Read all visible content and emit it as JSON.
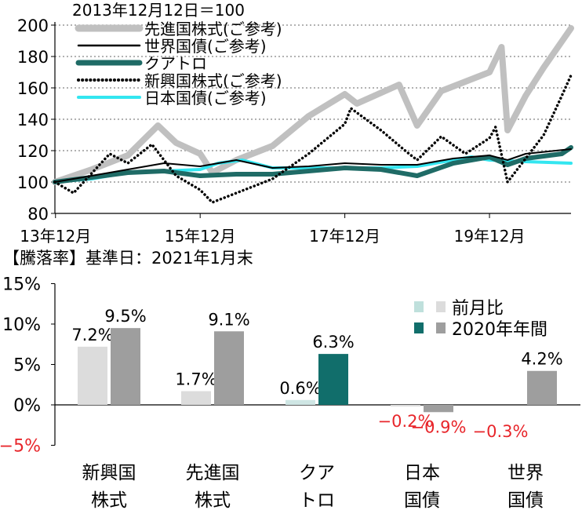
{
  "colors": {
    "developed_equity": "#c0c0c0",
    "world_bond": "#000000",
    "quatro": "#1f6b66",
    "emerging_equity": "#000000",
    "japan_bond": "#33e6f0",
    "prev_month_bar": "#dcdcdc",
    "ytd_bar": "#9e9e9e",
    "quatro_ytd_bar": "#116e6b",
    "quatro_prev_bar": "#cfe6e4",
    "legend_prev_swatch": "#bfe0dc",
    "negative_label": "#e8262b",
    "grid": "#999999"
  },
  "chart_data": [
    {
      "type": "line",
      "subtitle": "2013年12月12日＝100",
      "ylim": [
        80,
        200
      ],
      "yticks": [
        "80",
        "100",
        "120",
        "140",
        "160",
        "180",
        "200"
      ],
      "xlim": [
        "2013-12-12",
        "2021-01-31"
      ],
      "xticks": [
        {
          "date": "2013-12",
          "label": "13年12月"
        },
        {
          "date": "2015-12",
          "label": "15年12月"
        },
        {
          "date": "2017-12",
          "label": "17年12月"
        },
        {
          "date": "2019-12",
          "label": "19年12月"
        }
      ],
      "series": [
        {
          "name": "先進国株式(ご参考)",
          "style": "thick",
          "color_key": "developed_equity",
          "points": [
            [
              "2013-12-12",
              100
            ],
            [
              "2014-06",
              108
            ],
            [
              "2014-12",
              117
            ],
            [
              "2015-05",
              136
            ],
            [
              "2015-08",
              125
            ],
            [
              "2015-12",
              118
            ],
            [
              "2016-02",
              106
            ],
            [
              "2016-06",
              114
            ],
            [
              "2016-12",
              123
            ],
            [
              "2017-06",
              142
            ],
            [
              "2017-12",
              156
            ],
            [
              "2018-02",
              150
            ],
            [
              "2018-09",
              162
            ],
            [
              "2018-12",
              136
            ],
            [
              "2019-04",
              158
            ],
            [
              "2019-12",
              170
            ],
            [
              "2020-02",
              186
            ],
            [
              "2020-03",
              133
            ],
            [
              "2020-06",
              155
            ],
            [
              "2020-09",
              173
            ],
            [
              "2021-01-31",
              198
            ]
          ]
        },
        {
          "name": "世界国債(ご参考)",
          "style": "thin",
          "color_key": "world_bond",
          "points": [
            [
              "2013-12-12",
              100
            ],
            [
              "2014-06",
              104
            ],
            [
              "2014-12",
              108
            ],
            [
              "2015-06",
              112
            ],
            [
              "2015-12",
              110
            ],
            [
              "2016-06",
              114
            ],
            [
              "2016-12",
              109
            ],
            [
              "2017-06",
              110
            ],
            [
              "2017-12",
              112
            ],
            [
              "2018-06",
              111
            ],
            [
              "2018-12",
              111
            ],
            [
              "2019-06",
              115
            ],
            [
              "2019-12",
              117
            ],
            [
              "2020-03",
              114
            ],
            [
              "2020-06",
              118
            ],
            [
              "2021-01-31",
              121
            ]
          ]
        },
        {
          "name": "クアトロ",
          "style": "medium",
          "color_key": "quatro",
          "points": [
            [
              "2013-12-12",
              100
            ],
            [
              "2014-06",
              103
            ],
            [
              "2014-12",
              106
            ],
            [
              "2015-06",
              107
            ],
            [
              "2015-12",
              104
            ],
            [
              "2016-06",
              105
            ],
            [
              "2016-12",
              105
            ],
            [
              "2017-06",
              107
            ],
            [
              "2017-12",
              109
            ],
            [
              "2018-06",
              108
            ],
            [
              "2018-12",
              104
            ],
            [
              "2019-06",
              112
            ],
            [
              "2019-12",
              116
            ],
            [
              "2020-03",
              111
            ],
            [
              "2020-06",
              115
            ],
            [
              "2020-12",
              118
            ],
            [
              "2021-01-31",
              122
            ]
          ]
        },
        {
          "name": "新興国株式(ご参考)",
          "style": "dotted",
          "color_key": "emerging_equity",
          "points": [
            [
              "2013-12-12",
              100
            ],
            [
              "2014-03",
              93
            ],
            [
              "2014-09",
              118
            ],
            [
              "2014-12",
              112
            ],
            [
              "2015-04",
              124
            ],
            [
              "2015-08",
              104
            ],
            [
              "2015-12",
              95
            ],
            [
              "2016-02",
              87
            ],
            [
              "2016-06",
              93
            ],
            [
              "2016-12",
              102
            ],
            [
              "2017-06",
              118
            ],
            [
              "2017-12",
              137
            ],
            [
              "2018-01",
              147
            ],
            [
              "2018-06",
              133
            ],
            [
              "2018-10",
              120
            ],
            [
              "2018-12",
              114
            ],
            [
              "2019-04",
              129
            ],
            [
              "2019-08",
              118
            ],
            [
              "2019-12",
              128
            ],
            [
              "2020-01",
              135
            ],
            [
              "2020-03",
              100
            ],
            [
              "2020-06",
              115
            ],
            [
              "2020-09",
              130
            ],
            [
              "2020-12",
              155
            ],
            [
              "2021-01-31",
              168
            ]
          ]
        },
        {
          "name": "日本国債(ご参考)",
          "style": "medium",
          "color_key": "japan_bond",
          "points": [
            [
              "2013-12-12",
              100
            ],
            [
              "2014-06",
              102
            ],
            [
              "2014-12",
              106
            ],
            [
              "2015-06",
              107
            ],
            [
              "2015-12",
              108
            ],
            [
              "2016-03",
              112
            ],
            [
              "2016-07",
              114
            ],
            [
              "2016-12",
              109
            ],
            [
              "2017-06",
              109
            ],
            [
              "2017-12",
              109
            ],
            [
              "2018-06",
              109
            ],
            [
              "2018-12",
              110
            ],
            [
              "2019-06",
              114
            ],
            [
              "2019-09",
              116
            ],
            [
              "2019-12",
              114
            ],
            [
              "2020-06",
              113
            ],
            [
              "2021-01-31",
              112
            ]
          ]
        }
      ]
    },
    {
      "type": "bar",
      "title": "【騰落率】基準日：2021年1月末",
      "ylim": [
        -5,
        15
      ],
      "yticks": [
        "−5%",
        "0%",
        "5%",
        "10%",
        "15%"
      ],
      "categories": [
        {
          "line1": "新興国",
          "line2": "株式"
        },
        {
          "line1": "先進国",
          "line2": "株式"
        },
        {
          "line1": "クア",
          "line2": "トロ"
        },
        {
          "line1": "日本",
          "line2": "国債"
        },
        {
          "line1": "世界",
          "line2": "国債"
        }
      ],
      "series": [
        {
          "name": "前月比",
          "values": [
            7.2,
            1.7,
            0.6,
            -0.2,
            0.0
          ],
          "labels": [
            "7.2%",
            "1.7%",
            "0.6%",
            "−0.2%",
            ""
          ]
        },
        {
          "name": "2020年年間",
          "values": [
            9.5,
            9.1,
            6.3,
            -0.9,
            4.2
          ],
          "labels": [
            "9.5%",
            "9.1%",
            "6.3%",
            "−0.9%",
            "4.2%"
          ]
        }
      ],
      "negative_label_extra": "−0.3%"
    }
  ]
}
